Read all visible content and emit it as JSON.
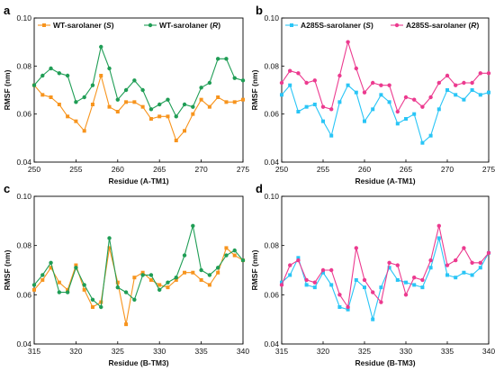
{
  "chart_data": [
    {
      "type": "line",
      "panel_label": "a",
      "xlabel": "Residue (A-TM1)",
      "ylabel": "RMSF (nm)",
      "xlim": [
        250,
        275
      ],
      "ylim": [
        0.04,
        0.1
      ],
      "xticks": [
        250,
        255,
        260,
        265,
        270,
        275
      ],
      "yticks": [
        0.04,
        0.06,
        0.08,
        0.1
      ],
      "tick_labels_x": [
        "250",
        "255",
        "260",
        "265",
        "270",
        "275"
      ],
      "tick_labels_y": [
        "0.04",
        "0.06",
        "0.08",
        "0.10"
      ],
      "legend_position": "top",
      "series": [
        {
          "name": "WT-sarolaner (S)",
          "legend_prefix": "WT-sarolaner (",
          "legend_italic": "S",
          "legend_suffix": ")",
          "color": "#F7941D",
          "marker": "square",
          "x": [
            250,
            251,
            252,
            253,
            254,
            255,
            256,
            257,
            258,
            259,
            260,
            261,
            262,
            263,
            264,
            265,
            266,
            267,
            268,
            269,
            270,
            271,
            272,
            273,
            274,
            275
          ],
          "y": [
            0.072,
            0.068,
            0.067,
            0.064,
            0.059,
            0.057,
            0.053,
            0.064,
            0.076,
            0.063,
            0.061,
            0.065,
            0.065,
            0.063,
            0.058,
            0.059,
            0.059,
            0.049,
            0.053,
            0.06,
            0.066,
            0.063,
            0.067,
            0.065,
            0.065,
            0.066
          ]
        },
        {
          "name": "WT-sarolaner (R)",
          "legend_prefix": "WT-sarolaner (",
          "legend_italic": "R",
          "legend_suffix": ")",
          "color": "#1F9D55",
          "marker": "circle",
          "x": [
            250,
            251,
            252,
            253,
            254,
            255,
            256,
            257,
            258,
            259,
            260,
            261,
            262,
            263,
            264,
            265,
            266,
            267,
            268,
            269,
            270,
            271,
            272,
            273,
            274,
            275
          ],
          "y": [
            0.072,
            0.076,
            0.079,
            0.077,
            0.076,
            0.065,
            0.067,
            0.072,
            0.088,
            0.079,
            0.066,
            0.07,
            0.074,
            0.07,
            0.062,
            0.064,
            0.066,
            0.059,
            0.064,
            0.063,
            0.071,
            0.073,
            0.083,
            0.083,
            0.075,
            0.074
          ]
        }
      ]
    },
    {
      "type": "line",
      "panel_label": "b",
      "xlabel": "Residue (A-TM1)",
      "ylabel": "RMSF (nm)",
      "xlim": [
        250,
        275
      ],
      "ylim": [
        0.04,
        0.1
      ],
      "xticks": [
        250,
        255,
        260,
        265,
        270,
        275
      ],
      "yticks": [
        0.04,
        0.06,
        0.08,
        0.1
      ],
      "tick_labels_x": [
        "250",
        "255",
        "260",
        "265",
        "270",
        "275"
      ],
      "tick_labels_y": [
        "0.04",
        "0.06",
        "0.08",
        "0.10"
      ],
      "legend_position": "top",
      "series": [
        {
          "name": "A285S-sarolaner (S)",
          "legend_prefix": "A285S-sarolaner (",
          "legend_italic": "S",
          "legend_suffix": ")",
          "color": "#29C5F6",
          "marker": "square",
          "x": [
            250,
            251,
            252,
            253,
            254,
            255,
            256,
            257,
            258,
            259,
            260,
            261,
            262,
            263,
            264,
            265,
            266,
            267,
            268,
            269,
            270,
            271,
            272,
            273,
            274,
            275
          ],
          "y": [
            0.068,
            0.072,
            0.061,
            0.063,
            0.064,
            0.057,
            0.051,
            0.065,
            0.072,
            0.069,
            0.057,
            0.062,
            0.068,
            0.065,
            0.056,
            0.058,
            0.06,
            0.048,
            0.051,
            0.062,
            0.07,
            0.068,
            0.066,
            0.07,
            0.068,
            0.069
          ]
        },
        {
          "name": "A285S-sarolaner (R)",
          "legend_prefix": "A285S-sarolaner (",
          "legend_italic": "R",
          "legend_suffix": ")",
          "color": "#EC3A8F",
          "marker": "circle",
          "x": [
            250,
            251,
            252,
            253,
            254,
            255,
            256,
            257,
            258,
            259,
            260,
            261,
            262,
            263,
            264,
            265,
            266,
            267,
            268,
            269,
            270,
            271,
            272,
            273,
            274,
            275
          ],
          "y": [
            0.073,
            0.078,
            0.077,
            0.073,
            0.074,
            0.063,
            0.062,
            0.076,
            0.09,
            0.079,
            0.069,
            0.073,
            0.072,
            0.072,
            0.061,
            0.067,
            0.066,
            0.063,
            0.067,
            0.073,
            0.076,
            0.072,
            0.073,
            0.073,
            0.077,
            0.077
          ]
        }
      ]
    },
    {
      "type": "line",
      "panel_label": "c",
      "xlabel": "Residue (B-TM3)",
      "ylabel": "RMSF (nm)",
      "xlim": [
        315,
        340
      ],
      "ylim": [
        0.04,
        0.1
      ],
      "xticks": [
        315,
        320,
        325,
        330,
        335,
        340
      ],
      "yticks": [
        0.04,
        0.06,
        0.08,
        0.1
      ],
      "tick_labels_x": [
        "315",
        "320",
        "325",
        "330",
        "335",
        "340"
      ],
      "tick_labels_y": [
        "0.04",
        "0.06",
        "0.08",
        "0.10"
      ],
      "series": [
        {
          "name": "WT-sarolaner (S)",
          "color": "#F7941D",
          "marker": "square",
          "x": [
            315,
            316,
            317,
            318,
            319,
            320,
            321,
            322,
            323,
            324,
            325,
            326,
            327,
            328,
            329,
            330,
            331,
            332,
            333,
            334,
            335,
            336,
            337,
            338,
            339,
            340
          ],
          "y": [
            0.062,
            0.066,
            0.071,
            0.065,
            0.062,
            0.072,
            0.062,
            0.055,
            0.057,
            0.079,
            0.065,
            0.048,
            0.067,
            0.069,
            0.066,
            0.064,
            0.063,
            0.066,
            0.069,
            0.069,
            0.066,
            0.064,
            0.069,
            0.079,
            0.076,
            0.074
          ]
        },
        {
          "name": "WT-sarolaner (R)",
          "color": "#1F9D55",
          "marker": "circle",
          "x": [
            315,
            316,
            317,
            318,
            319,
            320,
            321,
            322,
            323,
            324,
            325,
            326,
            327,
            328,
            329,
            330,
            331,
            332,
            333,
            334,
            335,
            336,
            337,
            338,
            339,
            340
          ],
          "y": [
            0.064,
            0.068,
            0.073,
            0.061,
            0.061,
            0.071,
            0.064,
            0.058,
            0.055,
            0.083,
            0.063,
            0.061,
            0.058,
            0.068,
            0.068,
            0.062,
            0.065,
            0.067,
            0.076,
            0.088,
            0.07,
            0.068,
            0.071,
            0.076,
            0.078,
            0.074
          ]
        }
      ]
    },
    {
      "type": "line",
      "panel_label": "d",
      "xlabel": "Residue (B-TM3)",
      "ylabel": "RMSF (nm)",
      "xlim": [
        315,
        340
      ],
      "ylim": [
        0.04,
        0.1
      ],
      "xticks": [
        315,
        320,
        325,
        330,
        335,
        340
      ],
      "yticks": [
        0.04,
        0.06,
        0.08,
        0.1
      ],
      "tick_labels_x": [
        "315",
        "320",
        "325",
        "330",
        "335",
        "340"
      ],
      "tick_labels_y": [
        "0.04",
        "0.06",
        "0.08",
        "0.10"
      ],
      "series": [
        {
          "name": "A285S-sarolaner (S)",
          "color": "#29C5F6",
          "marker": "square",
          "x": [
            315,
            316,
            317,
            318,
            319,
            320,
            321,
            322,
            323,
            324,
            325,
            326,
            327,
            328,
            329,
            330,
            331,
            332,
            333,
            334,
            335,
            336,
            337,
            338,
            339,
            340
          ],
          "y": [
            0.065,
            0.068,
            0.075,
            0.064,
            0.063,
            0.069,
            0.064,
            0.055,
            0.054,
            0.066,
            0.063,
            0.05,
            0.063,
            0.071,
            0.066,
            0.065,
            0.064,
            0.063,
            0.071,
            0.083,
            0.068,
            0.067,
            0.069,
            0.068,
            0.071,
            0.077
          ]
        },
        {
          "name": "A285S-sarolaner (R)",
          "color": "#EC3A8F",
          "marker": "circle",
          "x": [
            315,
            316,
            317,
            318,
            319,
            320,
            321,
            322,
            323,
            324,
            325,
            326,
            327,
            328,
            329,
            330,
            331,
            332,
            333,
            334,
            335,
            336,
            337,
            338,
            339,
            340
          ],
          "y": [
            0.064,
            0.072,
            0.074,
            0.066,
            0.065,
            0.07,
            0.07,
            0.06,
            0.055,
            0.079,
            0.066,
            0.061,
            0.057,
            0.073,
            0.072,
            0.06,
            0.067,
            0.066,
            0.074,
            0.088,
            0.072,
            0.074,
            0.079,
            0.073,
            0.073,
            0.077
          ]
        }
      ]
    }
  ]
}
